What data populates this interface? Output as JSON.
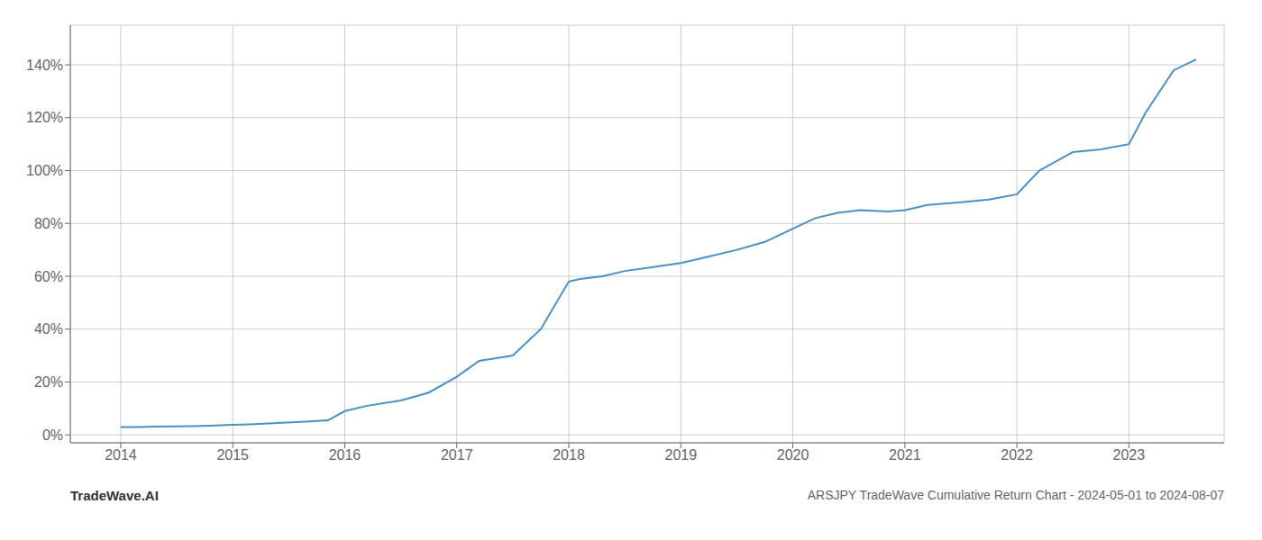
{
  "chart_data": {
    "type": "line",
    "title": "ARSJPY TradeWave Cumulative Return Chart - 2024-05-01 to 2024-08-07",
    "annotations": [
      "TradeWave.AI"
    ],
    "color": "#4a90c4",
    "grid": true,
    "x": [
      2014.0,
      2014.15,
      2014.3,
      2014.5,
      2014.65,
      2014.8,
      2015.0,
      2015.15,
      2015.4,
      2015.65,
      2015.85,
      2016.0,
      2016.2,
      2016.5,
      2016.75,
      2017.0,
      2017.2,
      2017.5,
      2017.75,
      2018.0,
      2018.1,
      2018.3,
      2018.5,
      2018.75,
      2019.0,
      2019.2,
      2019.5,
      2019.75,
      2020.0,
      2020.2,
      2020.4,
      2020.6,
      2020.85,
      2021.0,
      2021.2,
      2021.5,
      2021.75,
      2022.0,
      2022.2,
      2022.5,
      2022.75,
      2023.0,
      2023.15,
      2023.4,
      2023.6
    ],
    "values": [
      3.0,
      3.0,
      3.1,
      3.2,
      3.3,
      3.5,
      3.8,
      4.0,
      4.5,
      5.0,
      5.5,
      9.0,
      11.0,
      13.0,
      16.0,
      22.0,
      28.0,
      30.0,
      40.0,
      58.0,
      59.0,
      60.0,
      62.0,
      63.5,
      65.0,
      67.0,
      70.0,
      73.0,
      78.0,
      82.0,
      84.0,
      85.0,
      84.5,
      85.0,
      87.0,
      88.0,
      89.0,
      91.0,
      100.0,
      107.0,
      108.0,
      110.0,
      122.0,
      138.0,
      142.0
    ],
    "xlim": [
      2013.55,
      2023.85
    ],
    "xticks": [
      2014,
      2015,
      2016,
      2017,
      2018,
      2019,
      2020,
      2021,
      2022,
      2023
    ],
    "ylim": [
      -3,
      155
    ],
    "yticks": [
      {
        "value": 0,
        "label": "0%"
      },
      {
        "value": 20,
        "label": "20%"
      },
      {
        "value": 40,
        "label": "40%"
      },
      {
        "value": 60,
        "label": "60%"
      },
      {
        "value": 80,
        "label": "80%"
      },
      {
        "value": 100,
        "label": "100%"
      },
      {
        "value": 120,
        "label": "120%"
      },
      {
        "value": 140,
        "label": "140%"
      }
    ]
  }
}
